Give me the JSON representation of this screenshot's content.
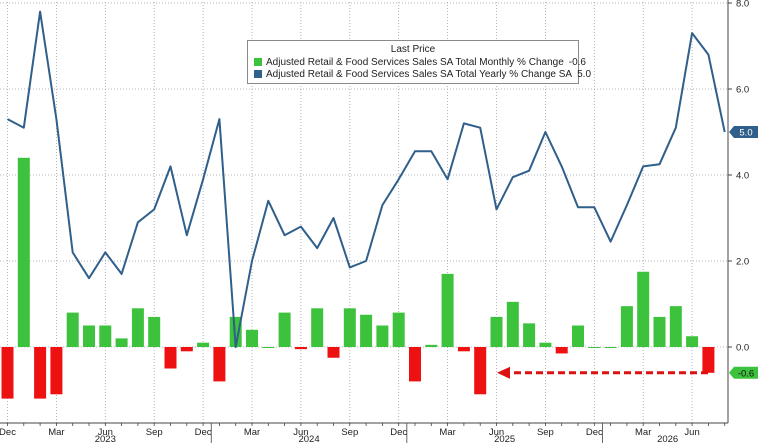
{
  "chart_data": {
    "type": "bar+line",
    "title": "",
    "ylim": [
      -1.2,
      8.0
    ],
    "yticks": [
      "8.0",
      "6.0",
      "4.0",
      "2.0",
      "0.0"
    ],
    "ytick_values": [
      8.0,
      6.0,
      4.0,
      2.0,
      0.0
    ],
    "month_labels": [
      "Dec",
      "Mar",
      "Jun",
      "Sep",
      "Dec",
      "Mar",
      "Jun",
      "Sep",
      "Dec",
      "Mar",
      "Jun",
      "Sep",
      "Dec",
      "Mar",
      "Jun"
    ],
    "year_labels": [
      "2023",
      "2024",
      "2025",
      "2026"
    ],
    "grid": true,
    "legend": {
      "title": "Last Price",
      "placement": "top-center",
      "entries": [
        {
          "label": "Adjusted Retail & Food Services Sales SA Total Monthly % Change",
          "value": "-0.6",
          "color": "#3cc23c"
        },
        {
          "label": "Adjusted Retail & Food Services Sales SA Total Yearly % Change SA",
          "value": "5.0",
          "color": "#2f5f8a"
        }
      ]
    },
    "series": [
      {
        "name": "Adjusted Retail & Food Services Sales SA Total Monthly % Change",
        "kind": "bar",
        "positive_color": "#3cc23c",
        "negative_color": "#ee1111",
        "values": [
          -1.2,
          4.4,
          -1.2,
          -1.1,
          0.8,
          0.5,
          0.5,
          0.2,
          0.9,
          0.7,
          -0.5,
          -0.1,
          0.1,
          -0.8,
          0.7,
          0.4,
          0.0,
          0.8,
          -0.05,
          0.9,
          -0.25,
          0.9,
          0.75,
          0.5,
          0.8,
          -0.8,
          0.05,
          1.7,
          -0.1,
          -1.1,
          0.7,
          1.05,
          0.55,
          0.1,
          -0.15,
          0.5,
          0.0,
          0.0,
          0.95,
          1.75,
          0.7,
          0.95,
          0.25,
          -0.6
        ]
      },
      {
        "name": "Adjusted Retail & Food Services Sales SA Total Yearly % Change SA",
        "kind": "line",
        "color": "#2f5f8a",
        "values": [
          5.3,
          5.1,
          7.8,
          5.3,
          2.2,
          1.6,
          2.2,
          1.7,
          2.9,
          3.2,
          4.2,
          2.6,
          3.9,
          5.3,
          0.0,
          2.0,
          3.4,
          2.6,
          2.8,
          2.3,
          3.0,
          1.85,
          2.0,
          3.3,
          3.9,
          4.55,
          4.55,
          3.9,
          5.2,
          5.1,
          3.2,
          3.95,
          4.1,
          5.0,
          4.2,
          3.25,
          3.25,
          2.45,
          3.3,
          4.2,
          4.25,
          5.1,
          7.3,
          6.8,
          5.0
        ]
      }
    ],
    "last_value_labels": {
      "line": "5.0",
      "bar": "-0.6",
      "line_color": "#2f5f8a",
      "bar_color": "#3cc23c"
    },
    "annotation": {
      "kind": "dashed-arrow",
      "color": "#dd1111",
      "points_to": "-0.6"
    }
  }
}
